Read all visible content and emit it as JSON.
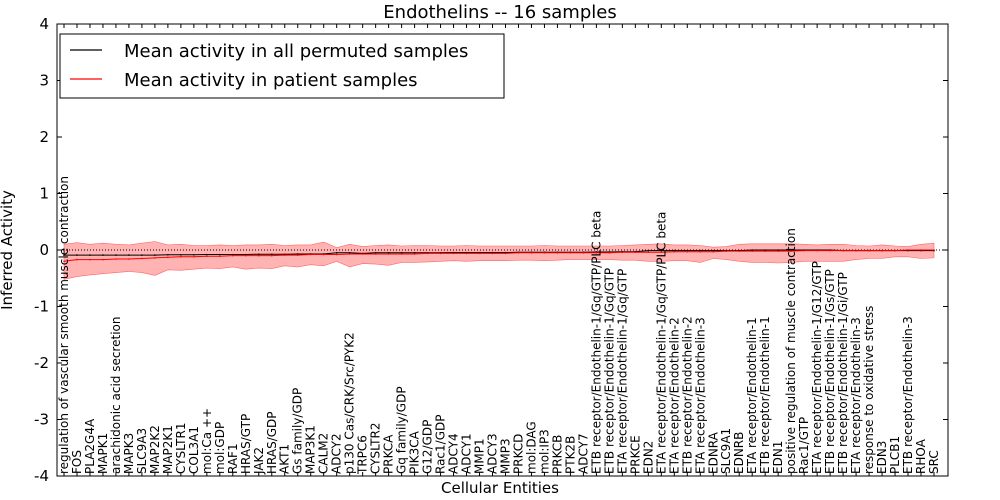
{
  "chart_data": {
    "type": "line",
    "title": "Endothelins -- 16 samples",
    "xlabel": "Cellular Entities",
    "ylabel": "Inferred Activity",
    "ylim": [
      -4,
      4
    ],
    "yticks": [
      -4,
      -3,
      -2,
      -1,
      0,
      1,
      2,
      3,
      4
    ],
    "grid": false,
    "legend_position": "top-left",
    "zero_line": {
      "value": 0,
      "style": "dotted"
    },
    "categories": [
      "regulation of vascular smooth muscle contraction",
      "FOS",
      "PLA2G4A",
      "MAPK1",
      "arachidonic acid secretion",
      "MAPK3",
      "SLC9A3",
      "MAP2K2",
      "MAP2K1",
      "CYSLTR1",
      "COL3A1",
      "mol:Ca ++",
      "mol:GDP",
      "RAF1",
      "HRAS/GTP",
      "JAK2",
      "HRAS/GDP",
      "AKT1",
      "Gs family/GDP",
      "MAP3K1",
      "CALM2",
      "ADCY2",
      "p130 Cas/CRK/Src/PYK2",
      "TRPC6",
      "CYSLTR2",
      "PRKCA",
      "Gq family/GDP",
      "PIK3CA",
      "G12/GDP",
      "Rac1/GDP",
      "ADCY4",
      "ADCY1",
      "MMP1",
      "ADCY3",
      "MMP3",
      "PRKCD",
      "mol:DAG",
      "mol:IP3",
      "PRKCB",
      "PTK2B",
      "ADCY7",
      "ETB receptor/Endothelin-1/Gq/GTP/PLC beta",
      "ETB receptor/Endothelin-1/Gq/GTP",
      "ETA receptor/Endothelin-1/Gq/GTP",
      "PRKCE",
      "EDN2",
      "ETA receptor/Endothelin-1/Gq/GTP/PLC beta",
      "ETA receptor/Endothelin-2",
      "ETB receptor/Endothelin-2",
      "ETA receptor/Endothelin-3",
      "EDNRA",
      "SLC9A1",
      "EDNRB",
      "ETA receptor/Endothelin-1",
      "ETB receptor/Endothelin-1",
      "EDN1",
      "positive regulation of muscle contraction",
      "Rac1/GTP",
      "ETA receptor/Endothelin-1/G12/GTP",
      "ETB receptor/Endothelin-1/Gs/GTP",
      "ETB receptor/Endothelin-1/Gi/GTP",
      "ETA receptor/Endothelin-3",
      "response to oxidative stress",
      "EDN3",
      "PLCB1",
      "ETB receptor/Endothelin-3",
      "RHOA",
      "SRC"
    ],
    "series": [
      {
        "name": "Mean activity in all permuted samples",
        "color": "#000000",
        "values": [
          -0.09,
          -0.09,
          -0.09,
          -0.09,
          -0.09,
          -0.09,
          -0.09,
          -0.09,
          -0.085,
          -0.085,
          -0.085,
          -0.08,
          -0.08,
          -0.08,
          -0.08,
          -0.075,
          -0.075,
          -0.075,
          -0.07,
          -0.07,
          -0.07,
          -0.05,
          -0.05,
          -0.06,
          -0.05,
          -0.05,
          -0.05,
          -0.05,
          -0.05,
          -0.05,
          -0.045,
          -0.045,
          -0.045,
          -0.045,
          -0.045,
          -0.04,
          -0.04,
          -0.04,
          -0.04,
          -0.04,
          -0.04,
          -0.035,
          -0.035,
          -0.03,
          -0.03,
          -0.01,
          -0.01,
          -0.01,
          -0.01,
          -0.01,
          -0.01,
          -0.01,
          -0.01,
          0.0,
          0.0,
          0.0,
          0.0,
          0.0,
          0.0,
          0.0,
          -0.01,
          -0.01,
          -0.01,
          -0.01,
          -0.01,
          -0.01,
          -0.01,
          -0.01
        ]
      },
      {
        "name": "Mean activity in patient samples",
        "color": "#ff0000",
        "band_color": "#ff9999",
        "values": [
          -0.2,
          -0.17,
          -0.17,
          -0.17,
          -0.16,
          -0.16,
          -0.15,
          -0.14,
          -0.13,
          -0.12,
          -0.12,
          -0.11,
          -0.11,
          -0.1,
          -0.1,
          -0.1,
          -0.1,
          -0.09,
          -0.09,
          -0.08,
          -0.08,
          -0.08,
          -0.07,
          -0.07,
          -0.07,
          -0.07,
          -0.07,
          -0.07,
          -0.06,
          -0.06,
          -0.06,
          -0.06,
          -0.06,
          -0.06,
          -0.06,
          -0.05,
          -0.05,
          -0.05,
          -0.05,
          -0.05,
          -0.05,
          -0.05,
          -0.05,
          -0.04,
          -0.04,
          -0.04,
          -0.04,
          -0.03,
          -0.03,
          -0.03,
          -0.03,
          -0.02,
          -0.02,
          -0.02,
          -0.02,
          -0.02,
          -0.02,
          -0.01,
          -0.01,
          -0.01,
          -0.01,
          -0.01,
          -0.01,
          -0.01,
          -0.01,
          0.0,
          0.0,
          0.0
        ],
        "upper": [
          0.1,
          0.13,
          0.1,
          0.12,
          0.1,
          0.09,
          0.12,
          0.15,
          0.09,
          0.1,
          0.08,
          0.08,
          0.09,
          0.08,
          0.09,
          0.09,
          0.1,
          0.08,
          0.09,
          0.09,
          0.14,
          0.04,
          0.1,
          0.06,
          0.08,
          0.09,
          0.07,
          0.08,
          0.08,
          0.07,
          0.07,
          0.08,
          0.07,
          0.07,
          0.07,
          0.07,
          0.07,
          0.08,
          0.07,
          0.07,
          0.07,
          0.07,
          0.07,
          0.08,
          0.09,
          0.1,
          0.11,
          0.09,
          0.09,
          0.08,
          0.05,
          0.06,
          0.1,
          0.11,
          0.11,
          0.11,
          0.11,
          0.1,
          0.09,
          0.1,
          0.1,
          0.08,
          0.07,
          0.09,
          0.07,
          0.06,
          0.1,
          0.12
        ],
        "lower": [
          -0.52,
          -0.47,
          -0.44,
          -0.42,
          -0.4,
          -0.38,
          -0.4,
          -0.45,
          -0.35,
          -0.36,
          -0.34,
          -0.32,
          -0.33,
          -0.3,
          -0.34,
          -0.32,
          -0.33,
          -0.28,
          -0.3,
          -0.26,
          -0.28,
          -0.2,
          -0.3,
          -0.24,
          -0.25,
          -0.27,
          -0.22,
          -0.22,
          -0.21,
          -0.2,
          -0.19,
          -0.2,
          -0.19,
          -0.19,
          -0.19,
          -0.18,
          -0.18,
          -0.19,
          -0.18,
          -0.17,
          -0.17,
          -0.17,
          -0.17,
          -0.18,
          -0.18,
          -0.2,
          -0.2,
          -0.19,
          -0.19,
          -0.22,
          -0.15,
          -0.17,
          -0.2,
          -0.22,
          -0.22,
          -0.23,
          -0.22,
          -0.2,
          -0.2,
          -0.2,
          -0.2,
          -0.17,
          -0.15,
          -0.15,
          -0.12,
          -0.12,
          -0.15,
          -0.14
        ]
      }
    ]
  }
}
